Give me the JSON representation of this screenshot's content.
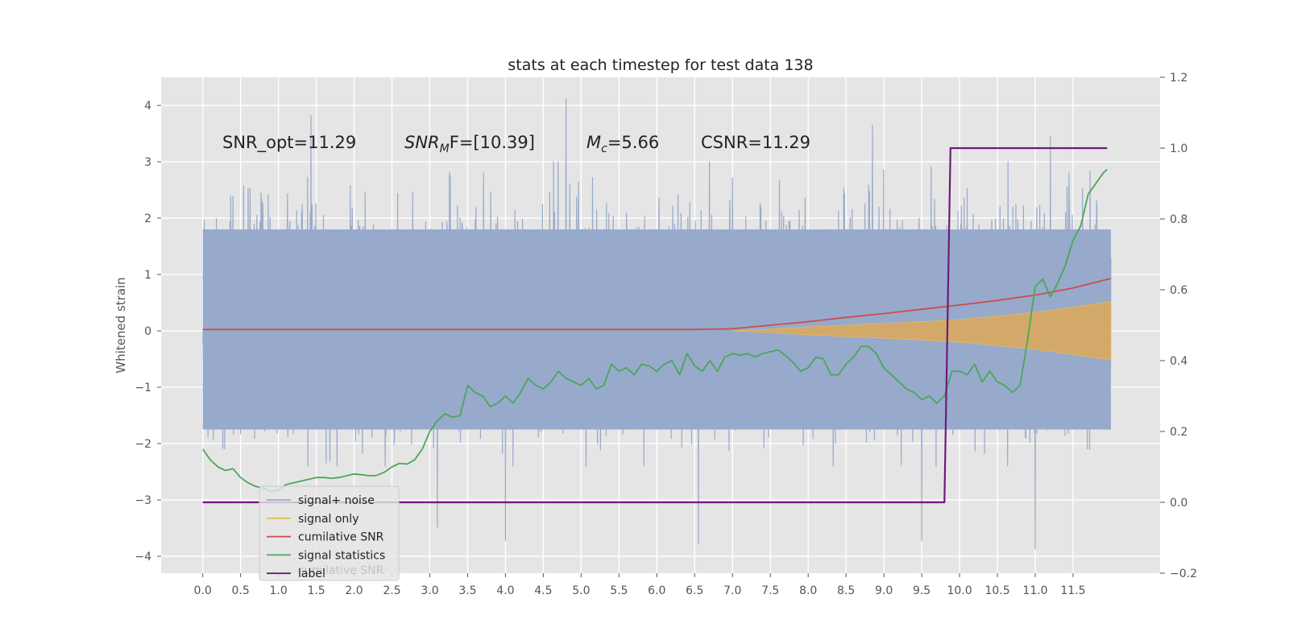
{
  "chart_data": {
    "type": "line",
    "title": "stats at each timestep for test data 138",
    "ylabel": "Whitened strain",
    "y2label": "",
    "xlim": [
      -0.55,
      12.65
    ],
    "ylim": [
      -4.3,
      4.5
    ],
    "y2lim": [
      -0.2,
      1.2
    ],
    "x_ticks": [
      "0.0",
      "0.5",
      "1.0",
      "1.5",
      "2.0",
      "2.5",
      "3.0",
      "3.5",
      "4.0",
      "4.5",
      "5.0",
      "5.5",
      "6.0",
      "6.5",
      "7.0",
      "7.5",
      "8.0",
      "8.5",
      "9.0",
      "9.5",
      "10.0",
      "10.5",
      "11.0",
      "11.5"
    ],
    "y_ticks": [
      "4",
      "3",
      "2",
      "1",
      "0",
      "−1",
      "−2",
      "−3",
      "−4"
    ],
    "y2_ticks": [
      "1.2",
      "1.0",
      "0.8",
      "0.6",
      "0.4",
      "0.2",
      "0.0",
      "−0.2"
    ],
    "grid": true,
    "legend_position": "lower-left",
    "annotations": [
      {
        "name": "snr-opt",
        "prefix": "SNR_opt=11.29",
        "sub": "",
        "suffix": ""
      },
      {
        "name": "snr-mf",
        "prefix": "SNR",
        "sub": "M",
        "suffix": "F=[10.39]"
      },
      {
        "name": "mc",
        "prefix": "M",
        "sub": "c",
        "suffix": "=5.66"
      },
      {
        "name": "csnr",
        "prefix": "CSNR=11.29",
        "sub": "",
        "suffix": ""
      }
    ],
    "legend_labels": [
      "signal+ noise",
      "signal only",
      "cumilative SNR",
      "signal statistics",
      "label"
    ],
    "legend_ghost_text": "cumilative SNR",
    "colors": {
      "background": "#e5e5e5",
      "grid": "#ffffff",
      "noise": "#98aacb",
      "signal": "#e8b85f",
      "signal_fill": "#d5a963",
      "cumulative_snr": "#cb4e4e",
      "signal_statistics": "#4aa65a",
      "label": "#6e1a7a"
    },
    "series": [
      {
        "name": "signal+ noise",
        "axis": "left",
        "x_range": [
          0.0,
          12.0
        ],
        "envelope_approx": [
          -1.8,
          2.5
        ],
        "extremes_approx": [
          {
            "x": 1.43,
            "y": 3.82
          },
          {
            "x": 4.8,
            "y": 4.12
          },
          {
            "x": 11.2,
            "y": 3.45
          },
          {
            "x": 8.85,
            "y": 3.65
          },
          {
            "x": 11.0,
            "y": -3.87
          },
          {
            "x": 6.55,
            "y": -3.77
          },
          {
            "x": 4.0,
            "y": -3.72
          },
          {
            "x": 9.5,
            "y": -3.72
          },
          {
            "x": 3.1,
            "y": -3.48
          }
        ]
      },
      {
        "name": "signal only",
        "axis": "left",
        "envelope": [
          [
            7.0,
            0.0
          ],
          [
            7.5,
            0.03
          ],
          [
            8.0,
            0.07
          ],
          [
            8.5,
            0.1
          ],
          [
            9.0,
            0.13
          ],
          [
            9.5,
            0.16
          ],
          [
            10.0,
            0.2
          ],
          [
            10.5,
            0.26
          ],
          [
            11.0,
            0.33
          ],
          [
            11.5,
            0.42
          ],
          [
            12.0,
            0.52
          ]
        ]
      },
      {
        "name": "cumilative SNR",
        "axis": "right",
        "x": [
          0,
          6.5,
          7.0,
          7.5,
          8.0,
          8.5,
          9.0,
          9.5,
          10.0,
          10.5,
          11.0,
          11.5,
          12.0
        ],
        "y": [
          0.488,
          0.488,
          0.49,
          0.5,
          0.51,
          0.522,
          0.533,
          0.545,
          0.557,
          0.57,
          0.585,
          0.605,
          0.632
        ]
      },
      {
        "name": "signal statistics",
        "axis": "right",
        "x": [
          0.0,
          0.1,
          0.2,
          0.3,
          0.4,
          0.5,
          0.6,
          0.7,
          0.8,
          0.9,
          1.0,
          1.1,
          1.2,
          1.3,
          1.4,
          1.5,
          1.6,
          1.7,
          1.8,
          1.9,
          2.0,
          2.1,
          2.2,
          2.3,
          2.4,
          2.5,
          2.6,
          2.7,
          2.8,
          2.9,
          3.0,
          3.1,
          3.2,
          3.3,
          3.4,
          3.5,
          3.6,
          3.7,
          3.8,
          3.9,
          4.0,
          4.1,
          4.2,
          4.3,
          4.4,
          4.5,
          4.6,
          4.7,
          4.8,
          4.9,
          5.0,
          5.1,
          5.2,
          5.3,
          5.4,
          5.5,
          5.6,
          5.7,
          5.8,
          5.9,
          6.0,
          6.1,
          6.2,
          6.3,
          6.4,
          6.5,
          6.6,
          6.7,
          6.8,
          6.9,
          7.0,
          7.1,
          7.2,
          7.3,
          7.4,
          7.5,
          7.6,
          7.7,
          7.8,
          7.9,
          8.0,
          8.1,
          8.2,
          8.3,
          8.4,
          8.5,
          8.6,
          8.7,
          8.8,
          8.9,
          9.0,
          9.1,
          9.2,
          9.3,
          9.4,
          9.5,
          9.6,
          9.7,
          9.8,
          9.9,
          10.0,
          10.1,
          10.2,
          10.3,
          10.4,
          10.5,
          10.6,
          10.7,
          10.8,
          10.9,
          11.0,
          11.1,
          11.2,
          11.3,
          11.4,
          11.5,
          11.6,
          11.7,
          11.8,
          11.9,
          11.95
        ],
        "y": [
          0.15,
          0.12,
          0.1,
          0.09,
          0.095,
          0.07,
          0.055,
          0.045,
          0.04,
          0.03,
          0.035,
          0.05,
          0.055,
          0.06,
          0.065,
          0.07,
          0.07,
          0.068,
          0.07,
          0.075,
          0.08,
          0.078,
          0.075,
          0.076,
          0.085,
          0.1,
          0.11,
          0.108,
          0.12,
          0.15,
          0.2,
          0.23,
          0.25,
          0.24,
          0.245,
          0.33,
          0.31,
          0.3,
          0.27,
          0.28,
          0.3,
          0.28,
          0.31,
          0.35,
          0.33,
          0.32,
          0.34,
          0.37,
          0.35,
          0.34,
          0.33,
          0.35,
          0.32,
          0.33,
          0.39,
          0.37,
          0.38,
          0.36,
          0.39,
          0.385,
          0.37,
          0.39,
          0.4,
          0.36,
          0.42,
          0.385,
          0.37,
          0.4,
          0.37,
          0.41,
          0.42,
          0.415,
          0.42,
          0.41,
          0.42,
          0.425,
          0.43,
          0.415,
          0.395,
          0.37,
          0.38,
          0.41,
          0.405,
          0.36,
          0.36,
          0.39,
          0.41,
          0.44,
          0.44,
          0.42,
          0.38,
          0.36,
          0.34,
          0.32,
          0.31,
          0.29,
          0.3,
          0.28,
          0.3,
          0.37,
          0.37,
          0.36,
          0.39,
          0.34,
          0.37,
          0.34,
          0.33,
          0.31,
          0.33,
          0.46,
          0.61,
          0.63,
          0.58,
          0.62,
          0.67,
          0.74,
          0.78,
          0.87,
          0.9,
          0.93,
          0.94
        ]
      },
      {
        "name": "label",
        "axis": "right",
        "x": [
          0.0,
          9.8,
          9.88,
          11.95
        ],
        "y": [
          0.0,
          0.0,
          1.0,
          1.0
        ]
      }
    ]
  }
}
